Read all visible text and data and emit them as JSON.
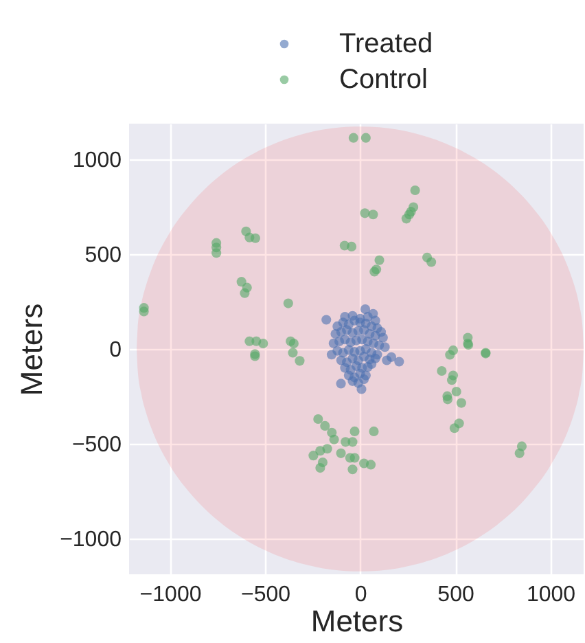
{
  "chart_data": {
    "type": "scatter",
    "xlabel": "Meters",
    "ylabel": "Meters",
    "xlim": [
      -1215,
      1175
    ],
    "ylim": [
      -1190,
      1190
    ],
    "xticks": [
      -1000,
      -500,
      0,
      500,
      1000
    ],
    "yticks": [
      -1000,
      -500,
      0,
      500,
      1000
    ],
    "grid": true,
    "legend": "top",
    "marker": "circle",
    "series": [
      {
        "type": "area",
        "color": "#ff0000",
        "x": [
          -1175,
          -1170,
          -1150,
          -1125,
          -1100,
          -1000,
          -900,
          -800,
          -700,
          -600,
          -500,
          -400,
          -300,
          -200,
          -100,
          0,
          100,
          200,
          300,
          400,
          500,
          600,
          700,
          800,
          900,
          1000,
          1100,
          1125,
          1150,
          1170,
          1175
        ],
        "values": [
          0,
          108,
          241,
          339,
          413,
          617,
          755,
          861,
          944,
          1010,
          1063,
          1105,
          1136,
          1158,
          1171,
          1175,
          1171,
          1158,
          1136,
          1105,
          1063,
          1010,
          944,
          861,
          755,
          617,
          413,
          339,
          241,
          108,
          0
        ],
        "marker": "none"
      },
      {
        "type": "area",
        "color": "#ff0000",
        "marker": "none",
        "x": [
          -1175,
          -1170,
          -1150,
          -1125,
          -1100,
          -1000,
          -900,
          -800,
          -700,
          -600,
          -500,
          -400,
          -300,
          -200,
          -100,
          0,
          100,
          200,
          300,
          400,
          500,
          600,
          700,
          800,
          900,
          1000,
          1100,
          1125,
          1150,
          1170,
          1175
        ],
        "values": [
          0,
          -108,
          -241,
          -339,
          -413,
          -617,
          -755,
          -861,
          -944,
          -1010,
          -1063,
          -1105,
          -1136,
          -1158,
          -1171,
          -1175,
          -1171,
          -1158,
          -1136,
          -1105,
          -1063,
          -1010,
          -944,
          -861,
          -755,
          -617,
          -413,
          -339,
          -241,
          -108,
          0
        ]
      },
      {
        "name": "Treated",
        "color": "#4c72b0",
        "x": [
          -178,
          27,
          68,
          -101,
          7,
          205,
          164,
          -120,
          -90,
          -60,
          -30,
          0,
          30,
          60,
          90,
          110,
          -130,
          -100,
          -70,
          -40,
          -10,
          20,
          50,
          80,
          120,
          -140,
          -110,
          -80,
          -50,
          -20,
          10,
          40,
          70,
          100,
          130,
          -120,
          -90,
          -60,
          -30,
          0,
          30,
          60,
          90,
          -100,
          -70,
          -40,
          -10,
          20,
          50,
          80,
          -80,
          -50,
          -20,
          10,
          40,
          60,
          -60,
          -30,
          0,
          30,
          -40,
          -10,
          20,
          -80,
          -40,
          0,
          40,
          80,
          140,
          -150
        ],
        "values": [
          154,
          210,
          186,
          -183,
          -212,
          -67,
          -43,
          120,
          140,
          130,
          150,
          140,
          135,
          120,
          110,
          90,
          80,
          90,
          100,
          85,
          95,
          100,
          80,
          70,
          60,
          30,
          40,
          50,
          35,
          45,
          50,
          40,
          30,
          20,
          10,
          -10,
          -20,
          -5,
          -15,
          -10,
          0,
          -20,
          -30,
          -60,
          -70,
          -50,
          -60,
          -40,
          -55,
          -50,
          -100,
          -110,
          -90,
          -100,
          -95,
          -80,
          -140,
          -150,
          -130,
          -140,
          -170,
          -180,
          -160,
          170,
          175,
          160,
          170,
          150,
          -60,
          -30
        ]
      },
      {
        "name": "Control",
        "color": "#55a868",
        "x": [
          -35,
          30,
          -600,
          -582,
          -551,
          -756,
          -756,
          -756,
          -624,
          -595,
          -607,
          -1137,
          -1137,
          -378,
          -82,
          -45,
          -582,
          -546,
          -510,
          -553,
          -366,
          -349,
          -553,
          -354,
          -318,
          289,
          280,
          267,
          243,
          258,
          25,
          68,
          101,
          85,
          75,
          352,
          374,
          566,
          566,
          489,
          472,
          660,
          429,
          489,
          482,
          569,
          660,
          458,
          506,
          532,
          460,
          496,
          520,
          850,
          838,
          -29,
          72,
          -40,
          -29,
          20,
          56,
          -40,
          -221,
          -185,
          -149,
          -137,
          -77,
          -246,
          -210,
          -173,
          -197,
          -210,
          -101,
          -53
        ],
        "values": [
          1115,
          1115,
          621,
          589,
          585,
          560,
          536,
          507,
          355,
          324,
          295,
          217,
          198,
          241,
          546,
          541,
          41,
          41,
          29,
          -27,
          41,
          29,
          -38,
          -20,
          -63,
          838,
          749,
          725,
          688,
          710,
          717,
          710,
          469,
          420,
          408,
          483,
          459,
          60,
          29,
          -7,
          -31,
          -20,
          -116,
          -140,
          -164,
          22,
          -24,
          -249,
          -225,
          -285,
          -266,
          -418,
          -393,
          -514,
          -551,
          -435,
          -435,
          -491,
          -575,
          -604,
          -611,
          -636,
          -370,
          -406,
          -442,
          -478,
          -491,
          -563,
          -538,
          -527,
          -599,
          -628,
          -551,
          -575
        ]
      }
    ]
  }
}
